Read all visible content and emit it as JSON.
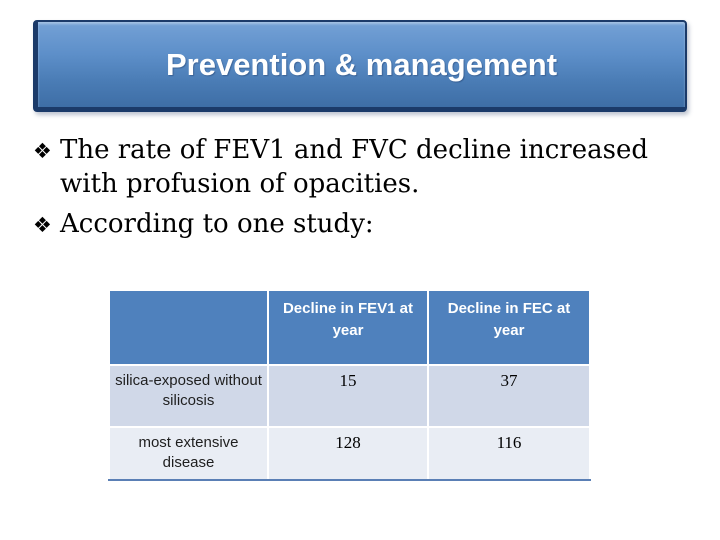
{
  "slide": {
    "title": "Prevention & management",
    "bullet_glyph": "❖",
    "bullets": [
      {
        "text": "The rate of FEV1 and FVC decline increased with profusion of opacities.",
        "lines": [
          "The rate of FEV1 and FVC decline increased",
          "with profusion of opacities."
        ]
      },
      {
        "text": "According to one study:",
        "lines": [
          "According to one study:"
        ]
      }
    ]
  },
  "table": {
    "headers": [
      "",
      "Decline in FEV1 at year",
      "Decline in FEC at year"
    ],
    "rows": [
      [
        "silica-exposed without silicosis",
        "15",
        "37"
      ],
      [
        "most extensive disease",
        "128",
        "116"
      ]
    ]
  },
  "colors": {
    "title_fill_top": "#74a1d6",
    "title_fill_bottom": "#3e6ea6",
    "title_border": "#1b3a69",
    "title_text": "#ffffff",
    "table_header_blue": "#4f81bd",
    "table_band_dark": "#d0d8e8",
    "table_band_light": "#e9edf4",
    "body_text": "#000000"
  }
}
